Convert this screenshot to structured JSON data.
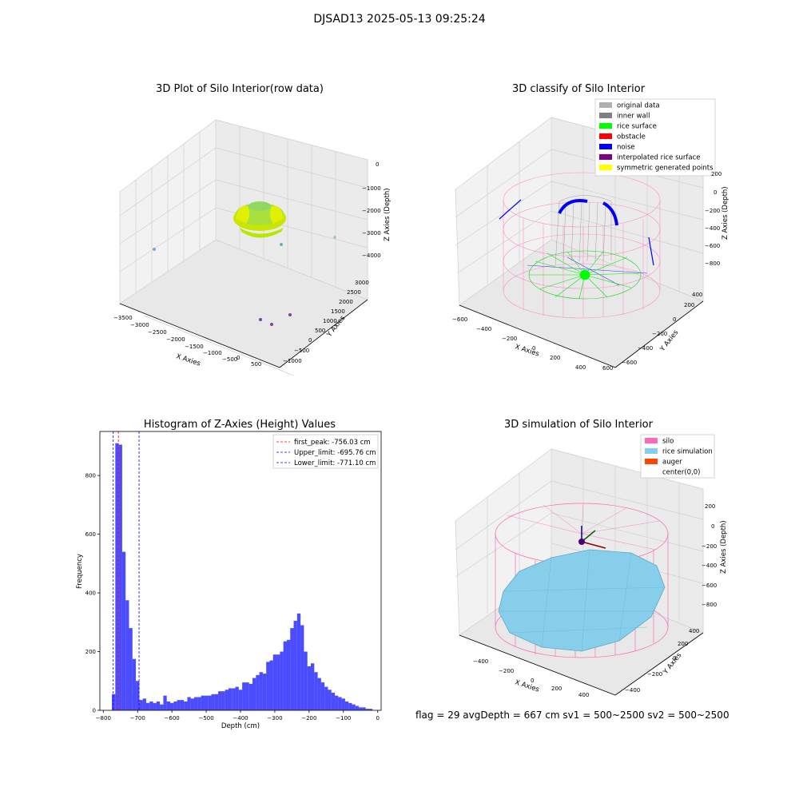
{
  "suptitle": "DJSAD13 2025-05-13 09:25:24",
  "panels": {
    "raw": {
      "title": "3D Plot of Silo Interior(row data)",
      "xlabel": "X Axies",
      "ylabel": "Y Axies",
      "zlabel": "Z Axies (Depth)",
      "xticks": [
        "−3500",
        "−3000",
        "−2500",
        "−2000",
        "−1500",
        "−1000",
        "−500",
        "0",
        "500"
      ],
      "yticks": [
        "−1000",
        "−500",
        "0",
        "500",
        "1000",
        "1500",
        "2000",
        "2500",
        "3000"
      ],
      "zticks": [
        "0",
        "−1000",
        "−2000",
        "−3000",
        "−4000"
      ]
    },
    "classify": {
      "title": "3D classify of Silo Interior",
      "xlabel": "X Axies",
      "ylabel": "Y Axies",
      "zlabel": "Z Axies (Depth)",
      "xticks": [
        "−600",
        "−400",
        "−200",
        "0",
        "200",
        "400",
        "600"
      ],
      "yticks": [
        "−600",
        "−400",
        "−200",
        "0",
        "200",
        "400"
      ],
      "zticks": [
        "200",
        "0",
        "−200",
        "−400",
        "−600",
        "−800"
      ],
      "legend": [
        {
          "label": "original data",
          "color": "#b0b0b0"
        },
        {
          "label": "inner wall",
          "color": "#808080"
        },
        {
          "label": "rice surface",
          "color": "#00ff00"
        },
        {
          "label": "obstacle",
          "color": "#ff0000"
        },
        {
          "label": "noise",
          "color": "#0000ff"
        },
        {
          "label": "interpolated rice surface",
          "color": "#800080"
        },
        {
          "label": "symmetric generated points",
          "color": "#ffff00"
        }
      ]
    },
    "simulation": {
      "title": "3D simulation of Silo Interior",
      "xlabel": "X Axies",
      "ylabel": "Y Axies",
      "zlabel": "Z Axies (Depth)",
      "xticks": [
        "−400",
        "−200",
        "0",
        "200",
        "400"
      ],
      "yticks": [
        "−400",
        "−200",
        "0",
        "200",
        "400"
      ],
      "zticks": [
        "200",
        "0",
        "−200",
        "−400",
        "−600",
        "−800"
      ],
      "legend": [
        {
          "label": "silo",
          "color": "#ff69b4"
        },
        {
          "label": "rice simulation",
          "color": "#87ceeb"
        },
        {
          "label": "auger",
          "color": "#ff4500"
        },
        {
          "label": "center(0,0)",
          "color": ""
        }
      ]
    }
  },
  "chart_data": {
    "type": "bar",
    "title": "Histogram of Z-Axies (Height) Values",
    "xlabel": "Depth (cm)",
    "ylabel": "Frequency",
    "xlim": [
      -810,
      10
    ],
    "ylim": [
      0,
      950
    ],
    "xticks": [
      -800,
      -700,
      -600,
      -500,
      -400,
      -300,
      -200,
      -100,
      0
    ],
    "xtick_labels": [
      "−800",
      "−700",
      "−600",
      "−500",
      "−400",
      "−300",
      "−200",
      "−100",
      "0"
    ],
    "yticks": [
      0,
      200,
      400,
      600,
      800
    ],
    "bar_color": "#0000ff",
    "bin_width": 10,
    "bin_starts": [
      -775,
      -765,
      -755,
      -745,
      -735,
      -725,
      -715,
      -705,
      -695,
      -685,
      -675,
      -665,
      -655,
      -645,
      -635,
      -625,
      -615,
      -605,
      -595,
      -585,
      -575,
      -565,
      -555,
      -545,
      -535,
      -525,
      -515,
      -505,
      -495,
      -485,
      -475,
      -465,
      -455,
      -445,
      -435,
      -425,
      -415,
      -405,
      -395,
      -385,
      -375,
      -365,
      -355,
      -345,
      -335,
      -325,
      -315,
      -305,
      -295,
      -285,
      -275,
      -265,
      -255,
      -245,
      -235,
      -225,
      -215,
      -205,
      -195,
      -185,
      -175,
      -165,
      -155,
      -145,
      -135,
      -125,
      -115,
      -105,
      -95,
      -85,
      -75,
      -65,
      -55,
      -45,
      -35,
      -25
    ],
    "counts": [
      55,
      910,
      905,
      540,
      375,
      280,
      175,
      100,
      35,
      40,
      25,
      30,
      25,
      30,
      20,
      50,
      30,
      25,
      30,
      35,
      35,
      30,
      45,
      40,
      45,
      45,
      50,
      50,
      50,
      55,
      55,
      65,
      65,
      70,
      75,
      75,
      80,
      70,
      95,
      95,
      90,
      110,
      120,
      130,
      125,
      165,
      170,
      190,
      190,
      200,
      235,
      240,
      280,
      305,
      330,
      290,
      200,
      150,
      160,
      130,
      110,
      95,
      80,
      70,
      60,
      50,
      45,
      40,
      30,
      25,
      20,
      15,
      10,
      10,
      5,
      5
    ],
    "reference_lines": [
      {
        "label": "first_peak: -756.03 cm",
        "value": -756.03,
        "color": "#ff0000"
      },
      {
        "label": "Upper_limit: -695.76 cm",
        "value": -695.76,
        "color": "#0000ff"
      },
      {
        "label": "Lower_limit: -771.10 cm",
        "value": -771.1,
        "color": "#0000ff"
      }
    ],
    "legend_position": "top-right"
  },
  "footer": "flag = 29   avgDepth = 667 cm   sv1 = 500~2500   sv2 = 500~2500"
}
